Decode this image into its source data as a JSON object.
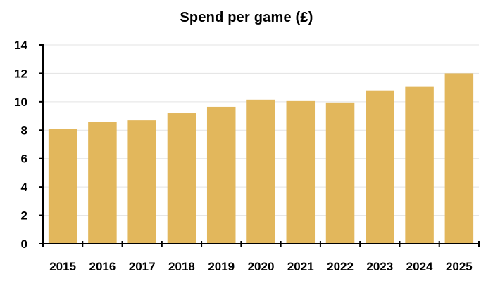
{
  "chart_data": {
    "type": "bar",
    "title": "Spend per game (£)",
    "xlabel": "",
    "ylabel": "",
    "categories": [
      "2015",
      "2016",
      "2017",
      "2018",
      "2019",
      "2020",
      "2021",
      "2022",
      "2023",
      "2024",
      "2025"
    ],
    "values": [
      8.1,
      8.6,
      8.7,
      9.2,
      9.65,
      10.15,
      10.05,
      9.95,
      10.8,
      11.05,
      12.0
    ],
    "ylim": [
      0,
      14
    ],
    "yticks": [
      0,
      2,
      4,
      6,
      8,
      10,
      12,
      14
    ],
    "grid": true,
    "legend": null,
    "colors": {
      "bar": "#E2B75C",
      "grid": "#E3E3E3",
      "axis": "#000000"
    }
  }
}
